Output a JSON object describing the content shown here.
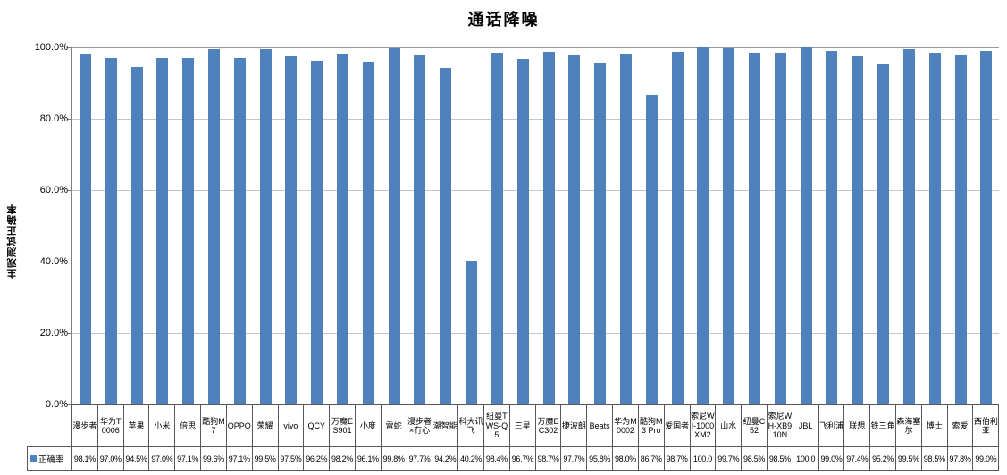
{
  "title": "通话降噪",
  "y_axis": {
    "title": "主观测试正确率",
    "ticks": [
      {
        "value": 100,
        "label": "100.0%"
      },
      {
        "value": 80,
        "label": "80.0%"
      },
      {
        "value": 60,
        "label": "60.0%"
      },
      {
        "value": 40,
        "label": "40.0%"
      },
      {
        "value": 20,
        "label": "20.0%"
      },
      {
        "value": 0,
        "label": "0.0%"
      }
    ]
  },
  "legend": {
    "series_label": "正确率"
  },
  "colors": {
    "bar": "#4F81BD",
    "gridline": "#C6C6C6",
    "axis": "#808080",
    "table_border": "#595959"
  },
  "chart_data": {
    "type": "bar",
    "title": "通话降噪",
    "xlabel": "",
    "ylabel": "主观测试正确率",
    "ylim": [
      0,
      100
    ],
    "y_tick_interval": 20,
    "grid": true,
    "legend_position": "bottom-data-table",
    "categories": [
      "漫步者",
      "华为T0006",
      "苹果",
      "小米",
      "倍思",
      "酷狗M7",
      "OPPO",
      "荣耀",
      "vivo",
      "QCY",
      "万魔ES901",
      "小度",
      "雷蛇",
      "漫步者×冇心",
      "潮智能",
      "科大讯飞",
      "纽曼TWS-Q5",
      "三星",
      "万魔EC302",
      "捷波朗",
      "Beats",
      "华为M0002",
      "酷狗M3 Pro",
      "爱国者",
      "索尼WI-1000XM2",
      "山水",
      "纽曼C52",
      "索尼WH-XB910N",
      "JBL",
      "飞利浦",
      "联想",
      "铁三角",
      "森海塞尔",
      "博士",
      "索爱",
      "西伯利亚"
    ],
    "series": [
      {
        "name": "正确率",
        "values": [
          98.1,
          97.0,
          94.5,
          97.0,
          97.1,
          99.6,
          97.1,
          99.5,
          97.5,
          96.2,
          98.2,
          96.1,
          99.8,
          97.7,
          94.2,
          40.2,
          98.4,
          96.7,
          98.7,
          97.7,
          95.8,
          98.0,
          86.7,
          98.7,
          100.0,
          99.7,
          98.5,
          98.5,
          100.0,
          99.0,
          97.4,
          95.2,
          99.5,
          98.5,
          97.8,
          99.0
        ],
        "display_values": [
          "98.1%",
          "97.0%",
          "94.5%",
          "97.0%",
          "97.1%",
          "99.6%",
          "97.1%",
          "99.5%",
          "97.5%",
          "96.2%",
          "98.2%",
          "96.1%",
          "99.8%",
          "97.7%",
          "94.2%",
          "40.2%",
          "98.4%",
          "96.7%",
          "98.7%",
          "97.7%",
          "95.8%",
          "98.0%",
          "86.7%",
          "98.7%",
          "100.0",
          "99.7%",
          "98.5%",
          "98.5%",
          "100.0",
          "99.0%",
          "97.4%",
          "95.2%",
          "99.5%",
          "98.5%",
          "97.8%",
          "99.0%"
        ]
      }
    ]
  }
}
